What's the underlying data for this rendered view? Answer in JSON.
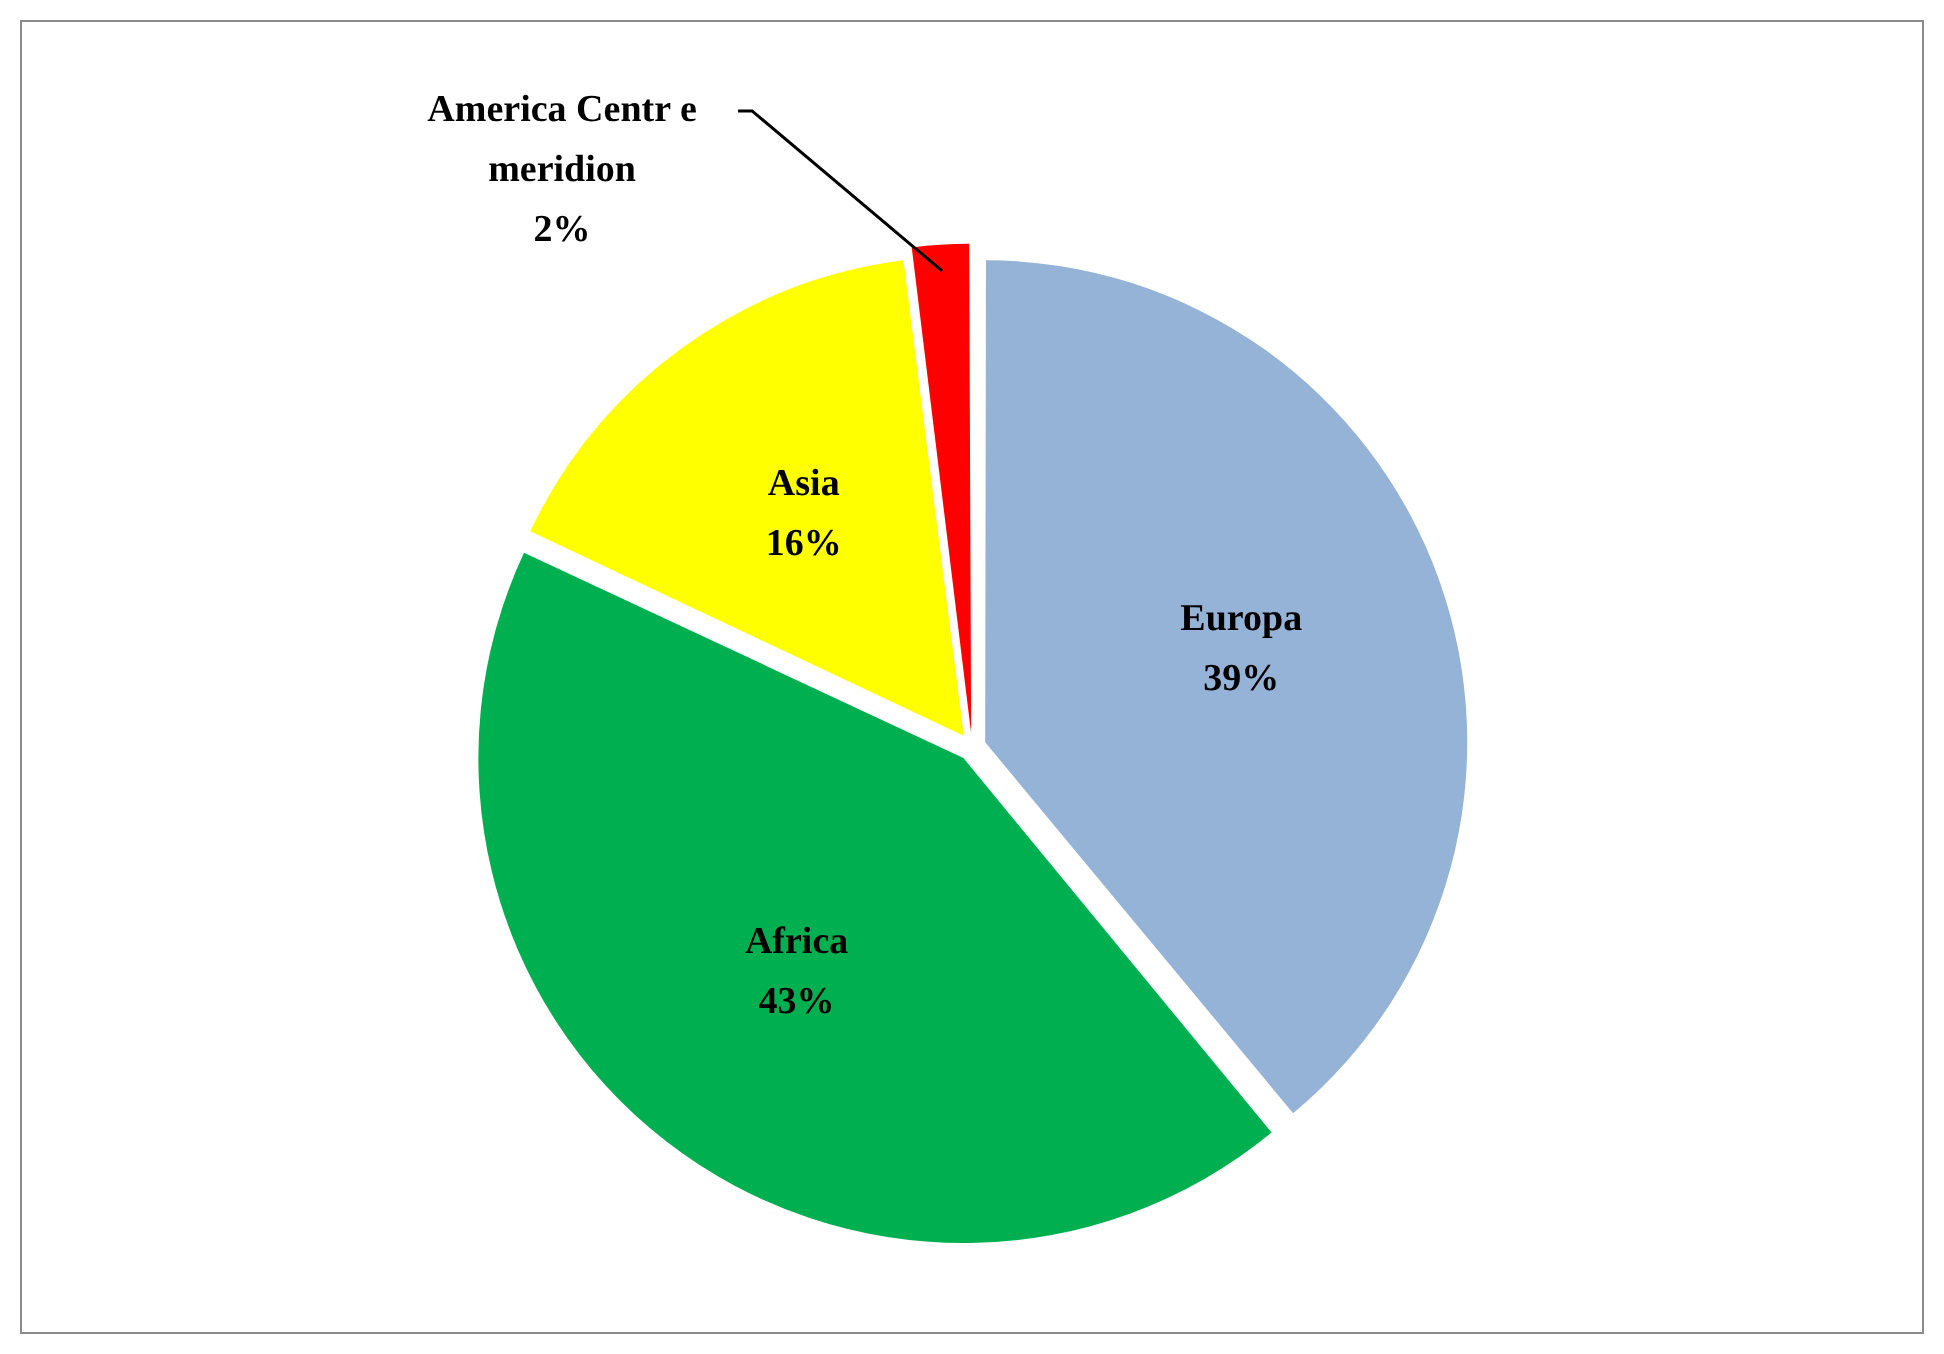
{
  "chart_data": {
    "type": "pie",
    "categories": [
      "Europa",
      "Africa",
      "Asia",
      "America Centr e meridion"
    ],
    "values": [
      39,
      43,
      16,
      2
    ],
    "colors": [
      "#95b3d7",
      "#00b050",
      "#ffff00",
      "#ff0000"
    ],
    "value_labels": [
      "39%",
      "43%",
      "16%",
      "2%"
    ],
    "legend": false
  }
}
